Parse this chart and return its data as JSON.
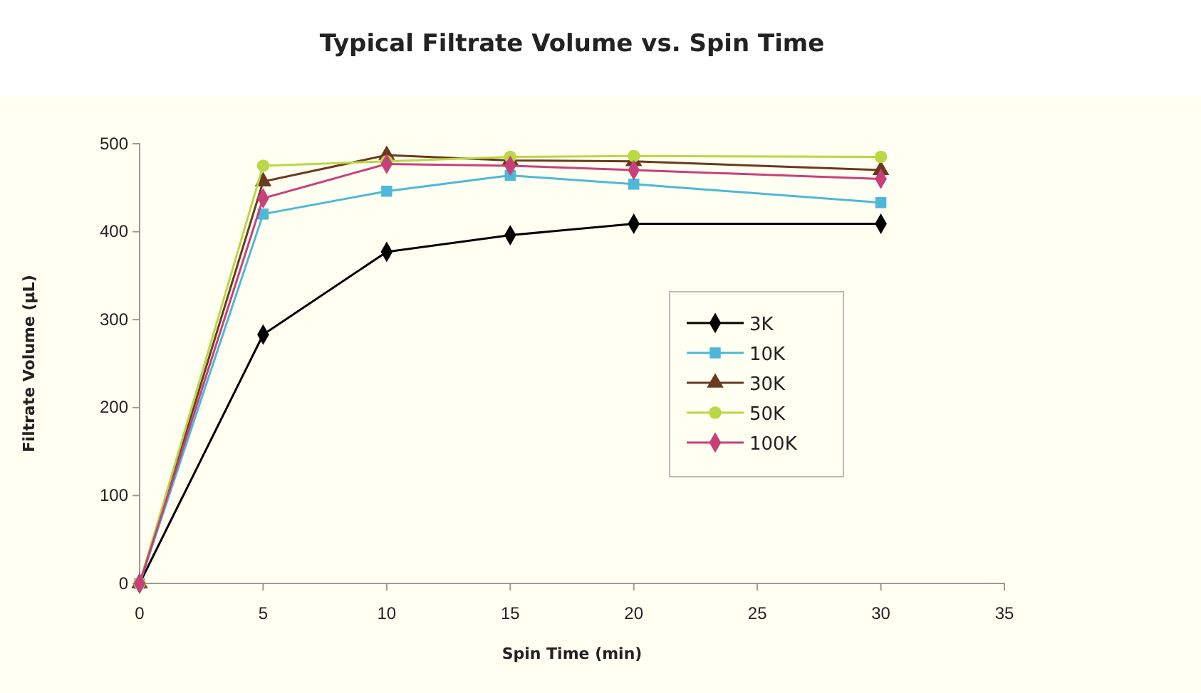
{
  "chart_data": {
    "type": "line",
    "title": "Typical Filtrate Volume vs. Spin Time",
    "xlabel": "Spin Time (min)",
    "ylabel": "Filtrate Volume (µL)",
    "xlim": [
      0,
      35
    ],
    "xticks": [
      0,
      5,
      10,
      15,
      20,
      25,
      30,
      35
    ],
    "ylim": [
      0,
      500
    ],
    "yticks": [
      0,
      100,
      200,
      300,
      400,
      500
    ],
    "x": [
      0,
      5,
      10,
      15,
      20,
      30
    ],
    "grid": false,
    "legend": "right",
    "series": [
      {
        "name": "3K",
        "color": "#000000",
        "marker": "diamond",
        "values": [
          0,
          283,
          377,
          396,
          409,
          409
        ]
      },
      {
        "name": "10K",
        "color": "#4db8d8",
        "marker": "square",
        "values": [
          0,
          420,
          446,
          464,
          454,
          433
        ]
      },
      {
        "name": "30K",
        "color": "#6b3a1e",
        "marker": "triangle",
        "values": [
          0,
          457,
          487,
          481,
          480,
          470
        ]
      },
      {
        "name": "50K",
        "color": "#b8d844",
        "marker": "circle",
        "values": [
          0,
          475,
          480,
          485,
          486,
          485
        ]
      },
      {
        "name": "100K",
        "color": "#c8407a",
        "marker": "diamond",
        "values": [
          0,
          438,
          477,
          475,
          470,
          460
        ]
      }
    ]
  }
}
